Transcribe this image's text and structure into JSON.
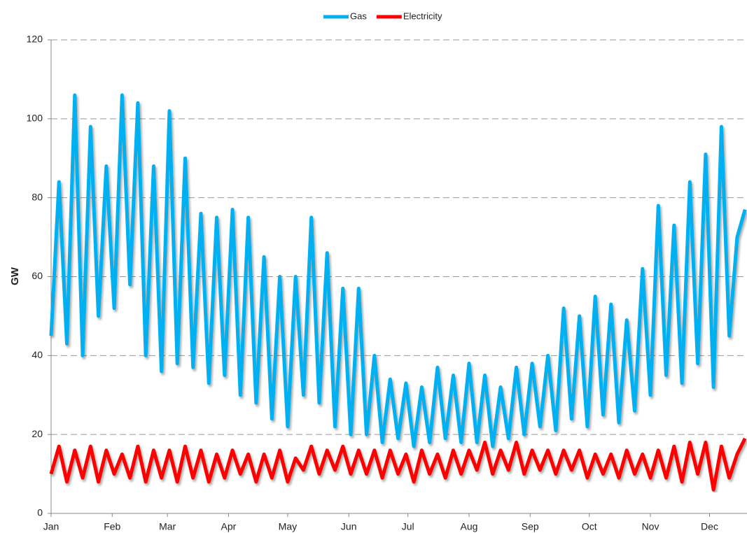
{
  "chart_data": {
    "type": "line",
    "y_label": "GW",
    "x": [
      0,
      4,
      8,
      12,
      16,
      20,
      24,
      28,
      32,
      36,
      40,
      44,
      48,
      52,
      56,
      60,
      64,
      68,
      72,
      76,
      80,
      84,
      88,
      92,
      96,
      100,
      104,
      108,
      112,
      116,
      120,
      124,
      128,
      132,
      136,
      140,
      144,
      148,
      152,
      156,
      160,
      164,
      168,
      172,
      176,
      180,
      184,
      188,
      192,
      196,
      200,
      204,
      208,
      212,
      216,
      220,
      224,
      228,
      232,
      236,
      240,
      244,
      248,
      252,
      256,
      260,
      264,
      268,
      272,
      276,
      280,
      284,
      288,
      292,
      296,
      300,
      304,
      308,
      312,
      316,
      320,
      324,
      328,
      332,
      336,
      340,
      344,
      348,
      352
    ],
    "series": [
      {
        "name": "Gas",
        "color": "#00b0f0",
        "values": [
          45,
          84,
          43,
          106,
          40,
          98,
          50,
          88,
          52,
          106,
          58,
          104,
          40,
          88,
          36,
          102,
          38,
          90,
          37,
          76,
          33,
          75,
          35,
          77,
          30,
          75,
          28,
          65,
          24,
          60,
          22,
          60,
          30,
          75,
          28,
          66,
          22,
          57,
          20,
          57,
          20,
          40,
          18,
          34,
          19,
          33,
          17,
          32,
          18,
          37,
          19,
          35,
          18,
          38,
          18,
          35,
          17,
          32,
          19,
          37,
          20,
          38,
          22,
          40,
          21,
          52,
          24,
          50,
          22,
          55,
          25,
          53,
          23,
          49,
          26,
          62,
          30,
          78,
          35,
          73,
          33,
          84,
          38,
          91,
          32,
          98,
          45,
          70,
          77
        ]
      },
      {
        "name": "Electricity",
        "color": "#ff0000",
        "values": [
          10,
          17,
          8,
          16,
          9,
          17,
          8,
          16,
          10,
          15,
          9,
          17,
          8,
          16,
          9,
          16,
          8,
          17,
          9,
          16,
          8,
          15,
          9,
          16,
          10,
          15,
          8,
          15,
          9,
          16,
          8,
          14,
          11,
          17,
          10,
          16,
          11,
          17,
          10,
          16,
          10,
          16,
          9,
          16,
          10,
          15,
          8,
          16,
          10,
          15,
          9,
          16,
          10,
          16,
          11,
          18,
          10,
          16,
          11,
          18,
          10,
          16,
          11,
          16,
          10,
          16,
          11,
          16,
          9,
          15,
          10,
          15,
          9,
          16,
          10,
          15,
          9,
          16,
          9,
          17,
          8,
          18,
          10,
          18,
          6,
          17,
          9,
          15,
          19
        ]
      }
    ],
    "xlim": [
      0,
      353
    ],
    "xticks": [
      {
        "value": 0,
        "label": "Jan"
      },
      {
        "value": 31,
        "label": "Feb"
      },
      {
        "value": 59,
        "label": "Mar"
      },
      {
        "value": 90,
        "label": "Apr"
      },
      {
        "value": 120,
        "label": "May"
      },
      {
        "value": 151,
        "label": "Jun"
      },
      {
        "value": 181,
        "label": "Jul"
      },
      {
        "value": 212,
        "label": "Aug"
      },
      {
        "value": 243,
        "label": "Sep"
      },
      {
        "value": 273,
        "label": "Oct"
      },
      {
        "value": 304,
        "label": "Nov"
      },
      {
        "value": 334,
        "label": "Dec"
      }
    ],
    "ylim": [
      0,
      120
    ],
    "yticks": [
      0,
      20,
      40,
      60,
      80,
      100,
      120
    ],
    "grid": true,
    "legend": "top"
  }
}
